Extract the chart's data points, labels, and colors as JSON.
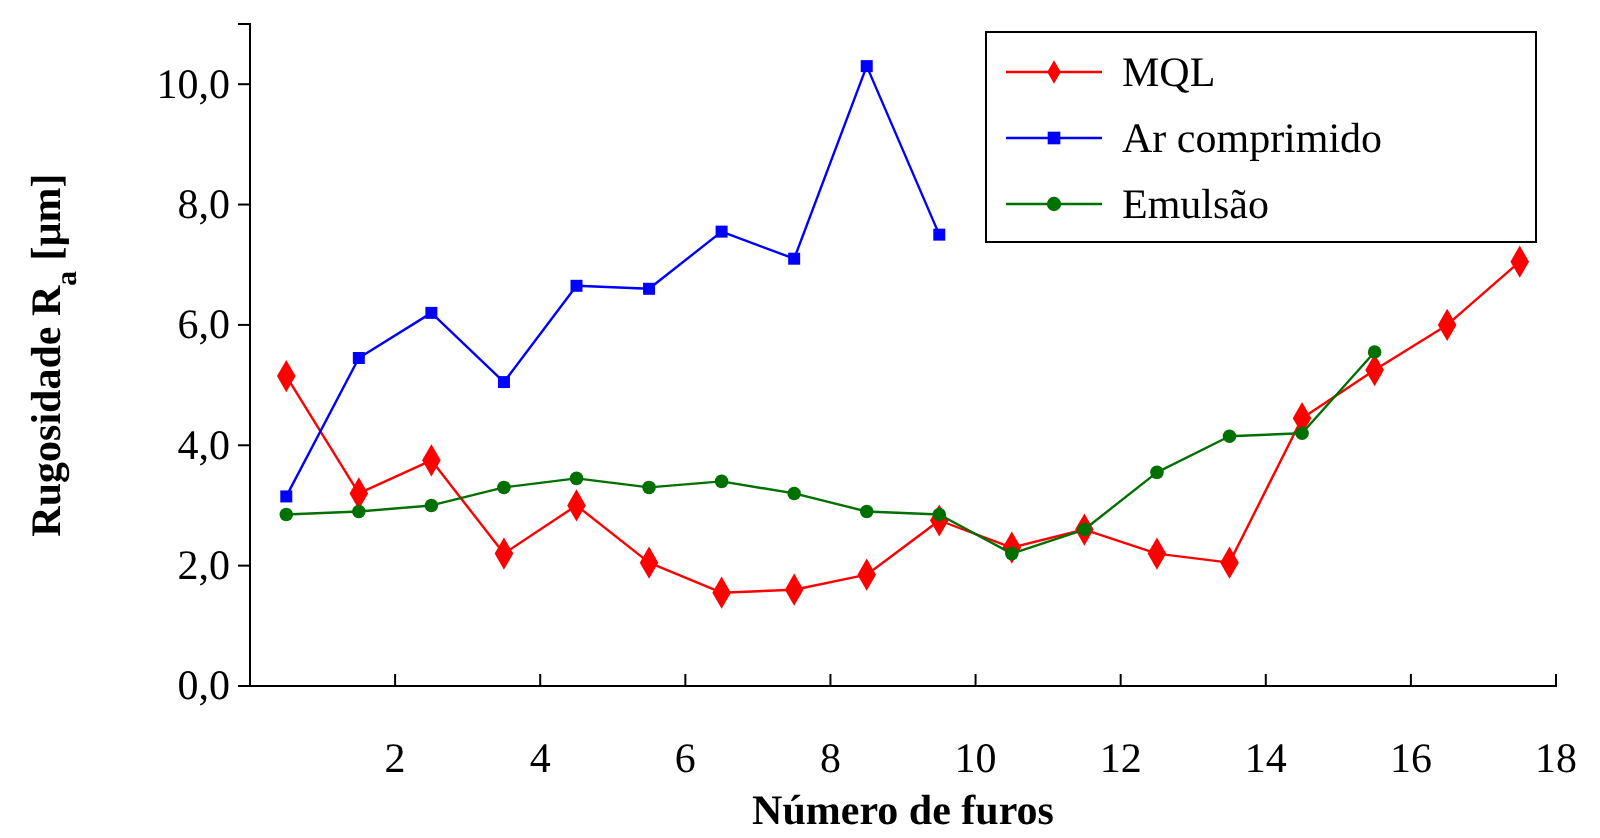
{
  "chart_data": {
    "type": "line",
    "xlabel": "Número de furos",
    "ylabel": "Rugosidade R$_{a}$ [µm]",
    "xlim": [
      0,
      18
    ],
    "xticks": [
      2,
      4,
      6,
      8,
      10,
      12,
      14,
      16,
      18
    ],
    "ylim": [
      0,
      11
    ],
    "yticks": [
      {
        "value": 0,
        "label": "0,0"
      },
      {
        "value": 2,
        "label": "2,0"
      },
      {
        "value": 4,
        "label": "4,0"
      },
      {
        "value": 6,
        "label": "6,0"
      },
      {
        "value": 8,
        "label": "8,0"
      },
      {
        "value": 10,
        "label": "10,0"
      }
    ],
    "grid": false,
    "legend": "top right",
    "line_style": "solid",
    "series": [
      {
        "name": "MQL",
        "color": "#ff0000",
        "marker": "diamond",
        "x": [
          0.5,
          1.5,
          2.5,
          3.5,
          4.5,
          5.5,
          6.5,
          7.5,
          8.5,
          9.5,
          10.5,
          11.5,
          12.5,
          13.5,
          14.5,
          15.5,
          16.5,
          17.5
        ],
        "values": [
          5.15,
          3.2,
          3.75,
          2.2,
          3.0,
          2.05,
          1.55,
          1.6,
          1.85,
          2.75,
          2.3,
          2.6,
          2.2,
          2.05,
          4.45,
          5.25,
          6.0,
          7.05
        ]
      },
      {
        "name": "Ar comprimido",
        "color": "#0000ff",
        "marker": "square",
        "x": [
          0.5,
          1.5,
          2.5,
          3.5,
          4.5,
          5.5,
          6.5,
          7.5,
          8.5,
          9.5
        ],
        "values": [
          3.15,
          5.45,
          6.2,
          5.05,
          6.65,
          6.6,
          7.55,
          7.1,
          10.3,
          7.5
        ]
      },
      {
        "name": "Emulsão",
        "color": "#007000",
        "marker": "circle",
        "x": [
          0.5,
          1.5,
          2.5,
          3.5,
          4.5,
          5.5,
          6.5,
          7.5,
          8.5,
          9.5,
          10.5,
          11.5,
          12.5,
          13.5,
          14.5,
          15.5
        ],
        "values": [
          2.85,
          2.9,
          3.0,
          3.3,
          3.45,
          3.3,
          3.4,
          3.2,
          2.9,
          2.85,
          2.2,
          2.6,
          3.55,
          4.15,
          4.2,
          5.55
        ]
      }
    ]
  }
}
